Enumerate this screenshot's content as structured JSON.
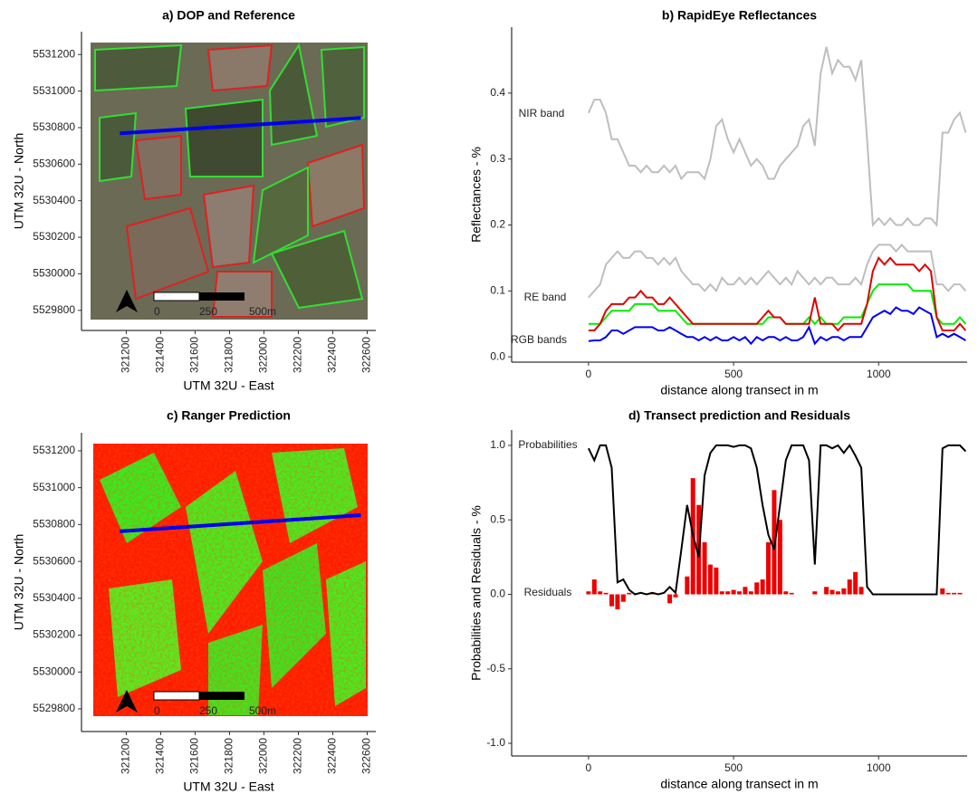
{
  "chart_data": [
    {
      "type": "map",
      "title": "a) DOP and Reference",
      "xlabel": "UTM 32U - East",
      "ylabel": "UTM 32U - North",
      "xlim": [
        320940,
        322650
      ],
      "ylim": [
        5529690,
        5531325
      ],
      "xticks": [
        321200,
        321400,
        321600,
        321800,
        322000,
        322200,
        322400,
        322600
      ],
      "yticks": [
        5529800,
        5530000,
        5530200,
        5530400,
        5530600,
        5530800,
        5531000,
        5531200
      ],
      "scalebar_labels": [
        "0",
        "250",
        "500m"
      ],
      "series": [
        {
          "color": "#0000ee",
          "x": [
            321163,
            322563
          ],
          "values": [
            5530769,
            5530853
          ]
        }
      ]
    },
    {
      "type": "line",
      "title": "b) RapidEye Reflectances",
      "xlabel": "distance along transect in m",
      "ylabel": "Reflectances - %",
      "xlim": [
        -265,
        1305
      ],
      "ylim": [
        -0.008,
        0.5
      ],
      "xticks": [
        0,
        500,
        1000
      ],
      "yticks": [
        {
          "value": 0,
          "label": "0.0"
        },
        0.1,
        0.2,
        0.3,
        0.4
      ],
      "annotations": [
        "NIR band",
        "RE band",
        "RGB bands"
      ],
      "x": [
        0,
        20,
        40,
        60,
        80,
        100,
        120,
        140,
        160,
        180,
        200,
        220,
        240,
        260,
        280,
        300,
        320,
        340,
        360,
        380,
        400,
        420,
        440,
        460,
        480,
        500,
        520,
        540,
        560,
        580,
        600,
        620,
        640,
        660,
        680,
        700,
        720,
        740,
        760,
        780,
        800,
        820,
        840,
        860,
        880,
        900,
        920,
        940,
        960,
        980,
        1000,
        1020,
        1040,
        1060,
        1080,
        1100,
        1120,
        1140,
        1160,
        1180,
        1200,
        1220,
        1240,
        1260,
        1280,
        1300
      ],
      "series": [
        {
          "color": "#bebebe",
          "values": [
            0.37,
            0.39,
            0.39,
            0.37,
            0.33,
            0.33,
            0.31,
            0.29,
            0.29,
            0.28,
            0.29,
            0.28,
            0.28,
            0.29,
            0.28,
            0.29,
            0.27,
            0.28,
            0.28,
            0.28,
            0.27,
            0.3,
            0.35,
            0.36,
            0.33,
            0.31,
            0.33,
            0.31,
            0.29,
            0.3,
            0.29,
            0.27,
            0.27,
            0.29,
            0.3,
            0.31,
            0.32,
            0.35,
            0.36,
            0.32,
            0.43,
            0.47,
            0.43,
            0.45,
            0.44,
            0.44,
            0.42,
            0.45,
            0.33,
            0.2,
            0.21,
            0.2,
            0.21,
            0.2,
            0.2,
            0.21,
            0.2,
            0.2,
            0.21,
            0.21,
            0.2,
            0.34,
            0.34,
            0.36,
            0.37,
            0.34
          ]
        },
        {
          "color": "#bebebe",
          "values": [
            0.09,
            0.1,
            0.11,
            0.14,
            0.15,
            0.16,
            0.15,
            0.15,
            0.16,
            0.16,
            0.15,
            0.15,
            0.14,
            0.15,
            0.14,
            0.15,
            0.13,
            0.12,
            0.11,
            0.11,
            0.1,
            0.11,
            0.1,
            0.12,
            0.11,
            0.11,
            0.12,
            0.11,
            0.12,
            0.11,
            0.12,
            0.13,
            0.12,
            0.11,
            0.12,
            0.11,
            0.13,
            0.12,
            0.11,
            0.12,
            0.11,
            0.12,
            0.12,
            0.11,
            0.11,
            0.11,
            0.12,
            0.11,
            0.14,
            0.16,
            0.17,
            0.17,
            0.17,
            0.16,
            0.17,
            0.16,
            0.16,
            0.16,
            0.16,
            0.16,
            0.11,
            0.11,
            0.1,
            0.11,
            0.11,
            0.1
          ]
        },
        {
          "color": "#00ee00",
          "values": [
            0.05,
            0.05,
            0.05,
            0.06,
            0.07,
            0.07,
            0.07,
            0.07,
            0.08,
            0.08,
            0.08,
            0.08,
            0.07,
            0.07,
            0.07,
            0.07,
            0.06,
            0.05,
            0.05,
            0.05,
            0.05,
            0.05,
            0.05,
            0.05,
            0.05,
            0.05,
            0.05,
            0.05,
            0.05,
            0.05,
            0.05,
            0.06,
            0.06,
            0.06,
            0.05,
            0.05,
            0.05,
            0.05,
            0.06,
            0.05,
            0.06,
            0.05,
            0.05,
            0.05,
            0.06,
            0.06,
            0.06,
            0.06,
            0.08,
            0.1,
            0.11,
            0.11,
            0.11,
            0.11,
            0.11,
            0.11,
            0.1,
            0.1,
            0.1,
            0.1,
            0.06,
            0.05,
            0.05,
            0.05,
            0.06,
            0.05
          ]
        },
        {
          "color": "#e00000",
          "values": [
            0.04,
            0.04,
            0.05,
            0.07,
            0.08,
            0.08,
            0.08,
            0.09,
            0.09,
            0.1,
            0.09,
            0.09,
            0.08,
            0.08,
            0.09,
            0.08,
            0.07,
            0.06,
            0.05,
            0.05,
            0.05,
            0.05,
            0.05,
            0.05,
            0.05,
            0.05,
            0.05,
            0.05,
            0.05,
            0.05,
            0.06,
            0.07,
            0.06,
            0.06,
            0.05,
            0.05,
            0.05,
            0.05,
            0.05,
            0.09,
            0.05,
            0.05,
            0.05,
            0.04,
            0.05,
            0.05,
            0.05,
            0.05,
            0.08,
            0.13,
            0.15,
            0.14,
            0.15,
            0.14,
            0.14,
            0.14,
            0.14,
            0.13,
            0.14,
            0.13,
            0.06,
            0.04,
            0.04,
            0.04,
            0.05,
            0.04
          ]
        },
        {
          "color": "#0000ee",
          "values": [
            0.024,
            0.025,
            0.025,
            0.03,
            0.04,
            0.04,
            0.035,
            0.04,
            0.045,
            0.045,
            0.045,
            0.045,
            0.04,
            0.04,
            0.045,
            0.04,
            0.035,
            0.03,
            0.03,
            0.025,
            0.03,
            0.025,
            0.03,
            0.025,
            0.025,
            0.03,
            0.025,
            0.03,
            0.02,
            0.03,
            0.025,
            0.03,
            0.03,
            0.025,
            0.03,
            0.025,
            0.025,
            0.03,
            0.045,
            0.02,
            0.03,
            0.025,
            0.03,
            0.03,
            0.025,
            0.03,
            0.03,
            0.03,
            0.045,
            0.06,
            0.065,
            0.07,
            0.065,
            0.075,
            0.07,
            0.07,
            0.065,
            0.075,
            0.07,
            0.065,
            0.03,
            0.035,
            0.03,
            0.035,
            0.03,
            0.025
          ]
        }
      ]
    },
    {
      "type": "map",
      "title": "c) Ranger Prediction",
      "xlabel": "UTM 32U - East",
      "ylabel": "UTM 32U - North",
      "xlim": [
        320940,
        322650
      ],
      "ylim": [
        5529677,
        5531298
      ],
      "xticks": [
        321200,
        321400,
        321600,
        321800,
        322000,
        322200,
        322400,
        322600
      ],
      "yticks": [
        5529800,
        5530000,
        5530200,
        5530400,
        5530600,
        5530800,
        5531000,
        5531200
      ],
      "scalebar_labels": [
        "0",
        "250",
        "500m"
      ],
      "series": [
        {
          "color": "#0000ee",
          "x": [
            321163,
            322563
          ],
          "values": [
            5530763,
            5530851
          ]
        }
      ]
    },
    {
      "type": "line",
      "title": "d) Transect prediction and Residuals",
      "xlabel": "distance along transect in m",
      "ylabel": "Probabilities and Residuals - %",
      "xlim": [
        -265,
        1305
      ],
      "ylim": [
        -1.085,
        1.103
      ],
      "xticks": [
        0,
        500,
        1000
      ],
      "yticks": [
        {
          "value": -1,
          "label": "-1.0"
        },
        -0.5,
        {
          "value": 0,
          "label": "0.0"
        },
        0.5,
        {
          "value": 1,
          "label": "1.0"
        }
      ],
      "annotations": [
        "Probabilities",
        "Residuals"
      ],
      "x": [
        0,
        20,
        40,
        60,
        80,
        100,
        120,
        140,
        160,
        180,
        200,
        220,
        240,
        260,
        280,
        300,
        320,
        340,
        360,
        380,
        400,
        420,
        440,
        460,
        480,
        500,
        520,
        540,
        560,
        580,
        600,
        620,
        640,
        660,
        680,
        700,
        720,
        740,
        760,
        780,
        800,
        820,
        840,
        860,
        880,
        900,
        920,
        940,
        960,
        980,
        1000,
        1020,
        1040,
        1060,
        1080,
        1100,
        1120,
        1140,
        1160,
        1180,
        1200,
        1220,
        1240,
        1260,
        1280,
        1300
      ],
      "series": [
        {
          "type": "bar",
          "color": "#ee0000",
          "values": [
            0.02,
            0.1,
            0.02,
            0.01,
            -0.08,
            -0.1,
            -0.05,
            0.01,
            0,
            0,
            0,
            0.01,
            0,
            0,
            -0.06,
            -0.02,
            0,
            0.12,
            0.78,
            0.6,
            0.35,
            0.2,
            0.18,
            0.02,
            0.02,
            0.03,
            0.02,
            0.05,
            0.02,
            0.08,
            0.1,
            0.35,
            0.7,
            0.5,
            0.02,
            0.01,
            0,
            0,
            0,
            0.02,
            0,
            0.05,
            0.03,
            0.02,
            0.04,
            0.1,
            0.15,
            0.05,
            0,
            0,
            0,
            0,
            0,
            0,
            0,
            0,
            0,
            0,
            0,
            0,
            0,
            0.04,
            0.01,
            0.01,
            0.01,
            0
          ]
        },
        {
          "type": "line",
          "color": "#000000",
          "values": [
            0.98,
            0.9,
            1.0,
            1.0,
            0.85,
            0.08,
            0.1,
            0.03,
            0,
            0.01,
            0,
            0.01,
            0,
            0.01,
            0.05,
            0.01,
            0.3,
            0.6,
            0.4,
            0.25,
            0.8,
            0.95,
            1.0,
            1.0,
            1.0,
            0.99,
            1.0,
            1.0,
            0.98,
            0.85,
            0.6,
            0.4,
            0.3,
            0.6,
            0.9,
            1.0,
            1.0,
            1.0,
            0.9,
            0.2,
            1.0,
            1.0,
            0.98,
            1.0,
            0.95,
            1.0,
            0.93,
            0.85,
            0.05,
            0,
            0,
            0,
            0,
            0,
            0,
            0,
            0,
            0,
            0,
            0,
            0,
            0.98,
            1.0,
            1.0,
            1.0,
            0.96
          ]
        }
      ]
    }
  ]
}
